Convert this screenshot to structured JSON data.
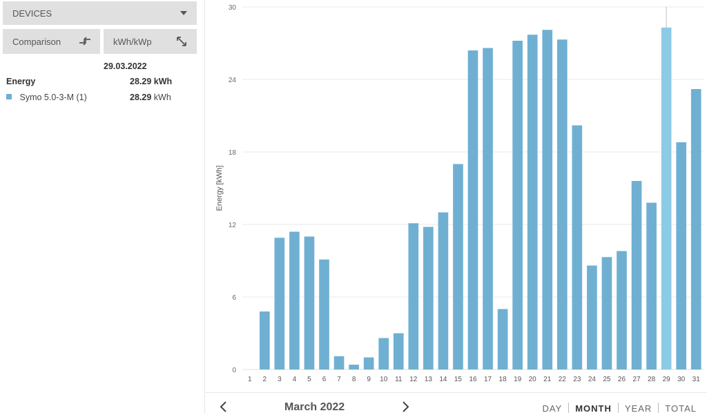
{
  "left_panel": {
    "devices_label": "DEVICES",
    "comparison_label": "Comparison",
    "kwh_kwp_label": "kWh/kWp",
    "summary": {
      "date": "29.03.2022",
      "energy_label": "Energy",
      "energy_value": "28.29",
      "energy_unit": "kWh",
      "device_name": "Symo 5.0-3-M (1)",
      "device_value": "28.29",
      "device_unit": "kWh",
      "device_color": "#6fb0d2"
    }
  },
  "bottom": {
    "period": "March 2022",
    "tabs": [
      "DAY",
      "MONTH",
      "YEAR",
      "TOTAL"
    ],
    "active_tab": "MONTH"
  },
  "colors": {
    "bar": "#6fb0d2",
    "bar_highlight": "#8ccbe6"
  },
  "chart_data": {
    "type": "bar",
    "ylabel": "Energy [kWh]",
    "ylim": [
      0,
      30
    ],
    "yticks": [
      0,
      6,
      12,
      18,
      24,
      30
    ],
    "grid": true,
    "highlighted_category": "29",
    "categories": [
      "1",
      "2",
      "3",
      "4",
      "5",
      "6",
      "7",
      "8",
      "9",
      "10",
      "11",
      "12",
      "13",
      "14",
      "15",
      "16",
      "17",
      "18",
      "19",
      "20",
      "21",
      "22",
      "23",
      "24",
      "25",
      "26",
      "27",
      "28",
      "29",
      "30",
      "31"
    ],
    "series": [
      {
        "name": "Symo 5.0-3-M (1)",
        "values": [
          0,
          4.8,
          10.9,
          11.4,
          11.0,
          9.1,
          1.1,
          0.4,
          1.0,
          2.6,
          3.0,
          12.1,
          11.8,
          13.0,
          17.0,
          26.4,
          26.6,
          5.0,
          27.2,
          27.7,
          28.1,
          27.3,
          20.2,
          8.6,
          9.3,
          9.8,
          15.6,
          13.8,
          28.29,
          18.8,
          23.2
        ]
      }
    ]
  }
}
